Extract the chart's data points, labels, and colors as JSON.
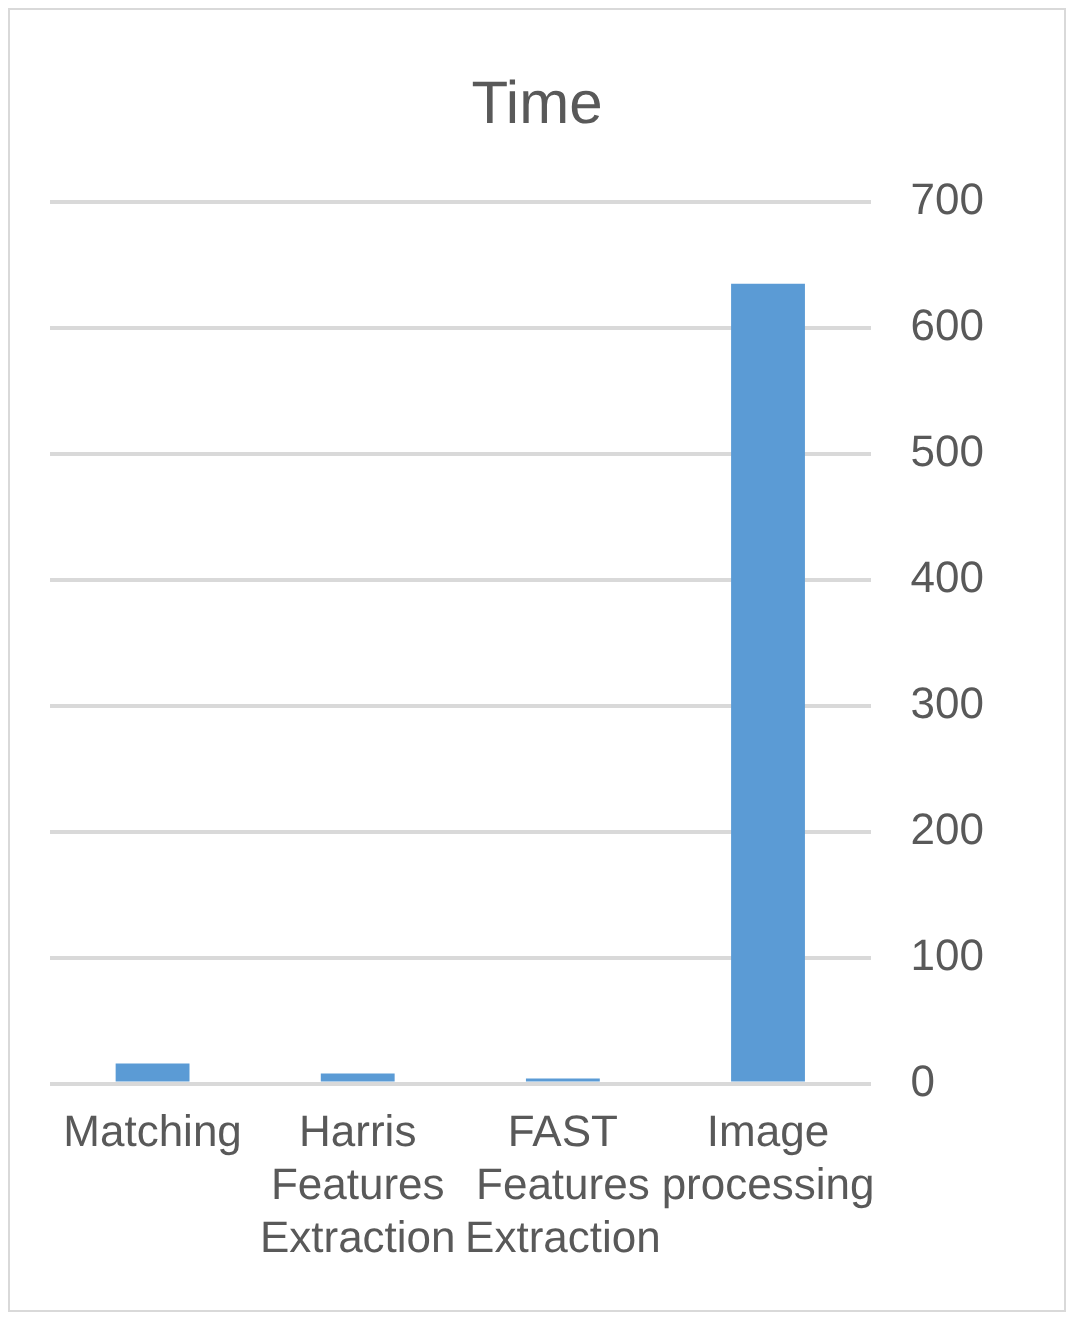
{
  "chart_data": {
    "type": "bar",
    "title": "Time",
    "categories": [
      "Matching",
      "Harris Features Extraction",
      "FAST Features Extraction",
      "Image processing"
    ],
    "values": [
      16,
      8,
      4,
      635
    ],
    "color": "#5b9bd5",
    "ylim": [
      0,
      700
    ],
    "yticks": [
      0,
      100,
      200,
      300,
      400,
      500,
      600,
      700
    ],
    "grid": "y",
    "legend": false
  }
}
